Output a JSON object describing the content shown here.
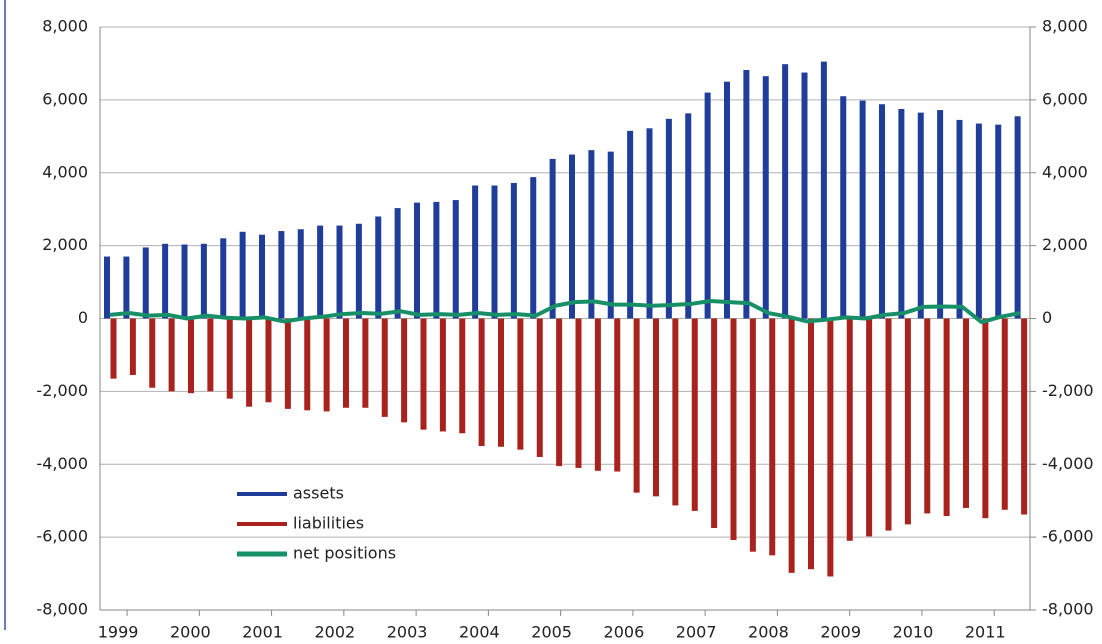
{
  "chart_data": {
    "type": "bar",
    "series": [
      {
        "name": "assets",
        "color": "#1f3d99",
        "values": [
          1700,
          1700,
          1950,
          2050,
          2030,
          2050,
          2200,
          2380,
          2300,
          2400,
          2450,
          2550,
          2550,
          2600,
          2800,
          3030,
          3180,
          3200,
          3250,
          3650,
          3650,
          3720,
          3880,
          4380,
          4500,
          4620,
          4580,
          5150,
          5220,
          5480,
          5630,
          6200,
          6500,
          6820,
          6650,
          6980,
          6750,
          7050,
          6100,
          5980,
          5880,
          5750,
          5650,
          5720,
          5450,
          5350,
          5320,
          5550
        ]
      },
      {
        "name": "liabilities",
        "color": "#a8231e",
        "values": [
          -1650,
          -1550,
          -1900,
          -2000,
          -2050,
          -2000,
          -2200,
          -2420,
          -2300,
          -2480,
          -2520,
          -2550,
          -2450,
          -2450,
          -2700,
          -2850,
          -3050,
          -3100,
          -3150,
          -3500,
          -3520,
          -3600,
          -3800,
          -4050,
          -4100,
          -4180,
          -4200,
          -4780,
          -4880,
          -5130,
          -5280,
          -5750,
          -6080,
          -6400,
          -6500,
          -6980,
          -6880,
          -7080,
          -6100,
          -5980,
          -5820,
          -5650,
          -5350,
          -5420,
          -5200,
          -5480,
          -5250,
          -5380
        ]
      },
      {
        "name": "net positions",
        "color": "#179068",
        "line": true,
        "values": [
          100,
          150,
          80,
          100,
          0,
          80,
          20,
          0,
          30,
          -80,
          0,
          50,
          120,
          150,
          130,
          200,
          100,
          120,
          100,
          150,
          100,
          120,
          80,
          350,
          450,
          470,
          380,
          380,
          350,
          370,
          400,
          480,
          450,
          420,
          150,
          50,
          -80,
          -30,
          30,
          0,
          100,
          150,
          320,
          330,
          320,
          -100,
          50,
          150
        ]
      }
    ],
    "xlim": [
      1998.75,
      2011.62
    ],
    "xticks": [
      1999,
      2000,
      2001,
      2002,
      2003,
      2004,
      2005,
      2006,
      2007,
      2008,
      2009,
      2010,
      2011
    ],
    "ylim": [
      -8000,
      8000
    ],
    "yticks": [
      {
        "value": -8000,
        "label": "-8,000"
      },
      {
        "value": -6000,
        "label": "-6,000"
      },
      {
        "value": -4000,
        "label": "-4,000"
      },
      {
        "value": -2000,
        "label": "-2,000"
      },
      0,
      {
        "value": 2000,
        "label": "2,000"
      },
      {
        "value": 4000,
        "label": "4,000"
      },
      {
        "value": 6000,
        "label": "6,000"
      },
      {
        "value": 8000,
        "label": "8,000"
      }
    ],
    "y2lim": [
      -8000,
      8000
    ],
    "y2ticks": [
      {
        "value": -8000,
        "label": "-8,000"
      },
      {
        "value": -6000,
        "label": "-6,000"
      },
      {
        "value": -4000,
        "label": "-4,000"
      },
      {
        "value": -2000,
        "label": "-2,000"
      },
      0,
      {
        "value": 2000,
        "label": "2,000"
      },
      {
        "value": 4000,
        "label": "4,000"
      },
      {
        "value": 6000,
        "label": "6,000"
      },
      {
        "value": 8000,
        "label": "8,000"
      }
    ],
    "grid": true,
    "legend": "lower left"
  }
}
